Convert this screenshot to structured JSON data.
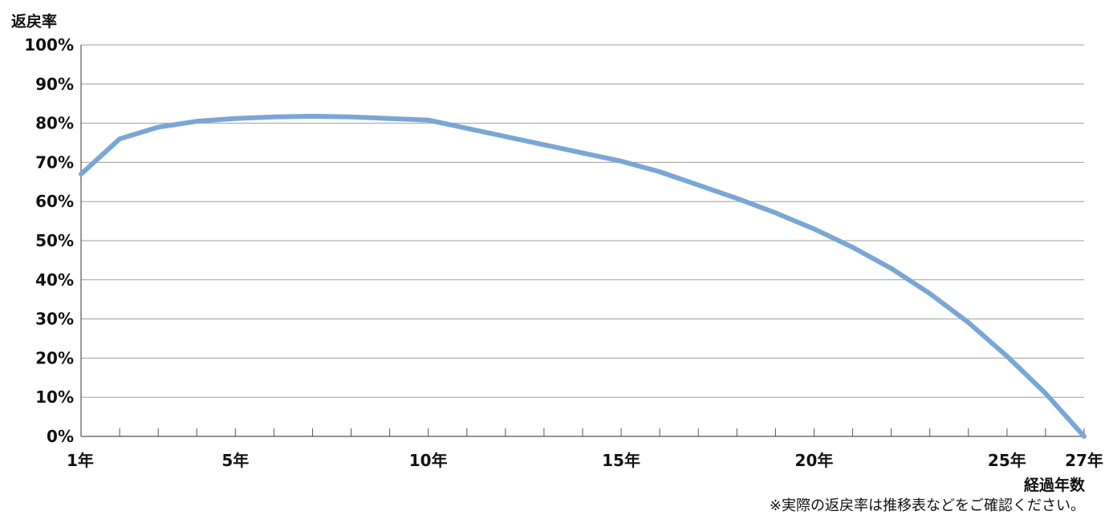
{
  "chart_data": {
    "type": "line",
    "ylabel": "返戻率",
    "xlabel": "経過年数",
    "note": "※実際の返戻率は推移表などをご確認ください。",
    "x_tick_labels": [
      {
        "x": 1,
        "label": "1年"
      },
      {
        "x": 5,
        "label": "5年"
      },
      {
        "x": 10,
        "label": "10年"
      },
      {
        "x": 15,
        "label": "15年"
      },
      {
        "x": 20,
        "label": "20年"
      },
      {
        "x": 25,
        "label": "25年"
      },
      {
        "x": 27,
        "label": "27年"
      }
    ],
    "y_tick_labels": [
      {
        "y": 0,
        "label": "0%"
      },
      {
        "y": 10,
        "label": "10%"
      },
      {
        "y": 20,
        "label": "20%"
      },
      {
        "y": 30,
        "label": "30%"
      },
      {
        "y": 40,
        "label": "40%"
      },
      {
        "y": 50,
        "label": "50%"
      },
      {
        "y": 60,
        "label": "60%"
      },
      {
        "y": 70,
        "label": "70%"
      },
      {
        "y": 80,
        "label": "80%"
      },
      {
        "y": 90,
        "label": "90%"
      },
      {
        "y": 100,
        "label": "100%"
      }
    ],
    "xlim": [
      1,
      27
    ],
    "ylim": [
      0,
      100
    ],
    "grid": {
      "horizontal": true,
      "vertical": false
    },
    "series": [
      {
        "color": "#7aa6d6",
        "x": [
          1,
          2,
          3,
          4,
          5,
          6,
          7,
          8,
          9,
          10,
          11,
          12,
          13,
          14,
          15,
          16,
          17,
          18,
          19,
          20,
          21,
          22,
          23,
          24,
          25,
          26,
          27
        ],
        "y": [
          67,
          76,
          79,
          80.5,
          81.2,
          81.6,
          81.8,
          81.6,
          81.2,
          80.8,
          78.7,
          76.6,
          74.5,
          72.4,
          70.3,
          67.6,
          64.2,
          60.8,
          57.1,
          53,
          48.3,
          42.9,
          36.5,
          29.1,
          20.5,
          11,
          0
        ]
      }
    ]
  }
}
